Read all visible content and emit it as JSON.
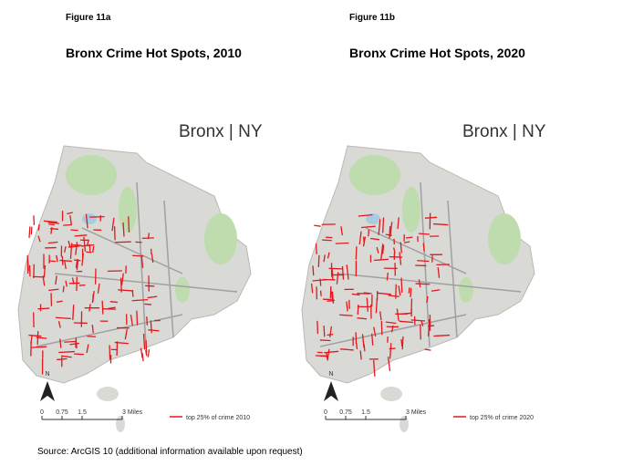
{
  "figures": [
    {
      "label": "Figure 11a",
      "title": "Bronx Crime Hot Spots, 2010",
      "map_title": "Bronx | NY",
      "north": "N",
      "scale": [
        "0",
        "0.75",
        "1.5",
        "3 Miles"
      ],
      "legend": "top 25% of crime 2010"
    },
    {
      "label": "Figure 11b",
      "title": "Bronx Crime Hot Spots, 2020",
      "map_title": "Bronx | NY",
      "north": "N",
      "scale": [
        "0",
        "0.75",
        "1.5",
        "3 Miles"
      ],
      "legend": "top 25% of crime 2020"
    }
  ],
  "source": "Source: ArcGIS 10 (additional information available upon request)"
}
